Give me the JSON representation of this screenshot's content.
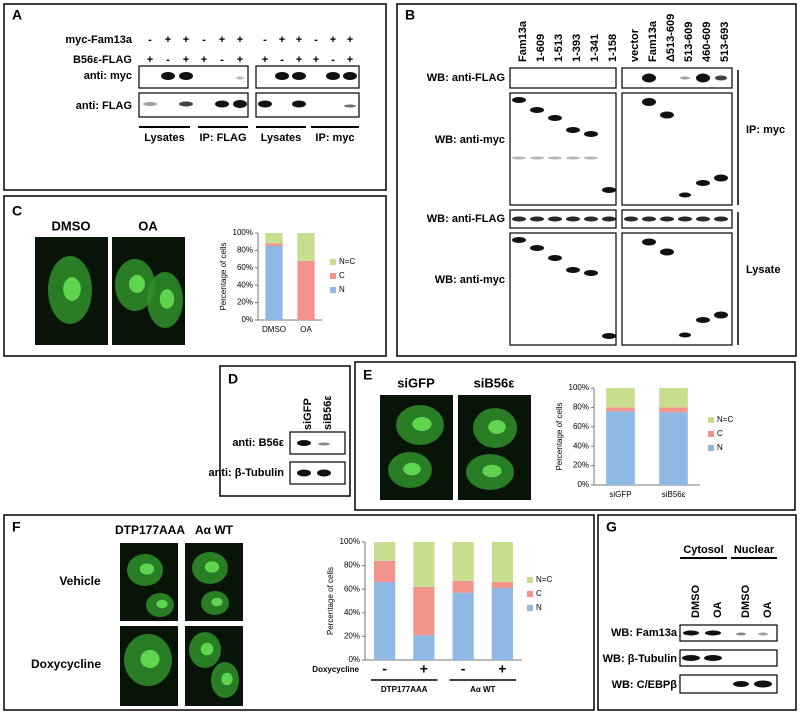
{
  "panels": {
    "a": {
      "label": "A",
      "rows": [
        {
          "label": "myc-Fam13a",
          "signs": [
            "-",
            "+",
            "+",
            "-",
            "+",
            "+",
            "-",
            "+",
            "+",
            "-",
            "+",
            "+"
          ]
        },
        {
          "label": "B56ε-FLAG",
          "signs": [
            "+",
            "-",
            "+",
            "+",
            "-",
            "+",
            "+",
            "-",
            "+",
            "+",
            "-",
            "+"
          ]
        }
      ],
      "blots": [
        "anti: myc",
        "anti: FLAG"
      ],
      "groups": [
        "Lysates",
        "IP: FLAG",
        "Lysates",
        "IP: myc"
      ]
    },
    "b": {
      "label": "B",
      "lanes_left": [
        "Fam13a",
        "1-609",
        "1-513",
        "1-393",
        "1-341",
        "1-158"
      ],
      "lanes_right": [
        "vector",
        "Fam13a",
        "Δ513-609",
        "513-609",
        "460-609",
        "513-693"
      ],
      "blots": [
        "WB: anti-FLAG",
        "WB: anti-myc",
        "WB: anti-FLAG",
        "WB: anti-myc"
      ],
      "sections": [
        "IP: myc",
        "Lysate"
      ]
    },
    "c": {
      "label": "C",
      "images": [
        "DMSO",
        "OA"
      ]
    },
    "d": {
      "label": "D",
      "lanes": [
        "siGFP",
        "siB56ε"
      ],
      "blots": [
        "anti: B56ε",
        "anti: β-Tubulin"
      ]
    },
    "e": {
      "label": "E",
      "images": [
        "siGFP",
        "siB56ε"
      ]
    },
    "f": {
      "label": "F",
      "columns": [
        "DTP177AAA",
        "Aα WT"
      ],
      "rows": [
        "Vehicle",
        "Doxycycline"
      ]
    },
    "g": {
      "label": "G",
      "fractions": [
        "Cytosol",
        "Nuclear"
      ],
      "lanes": [
        "DMSO",
        "OA",
        "DMSO",
        "OA"
      ],
      "blots": [
        "WB: Fam13a",
        "WB: β-Tubulin",
        "WB: C/EBPβ"
      ]
    }
  },
  "chart_data": [
    {
      "type": "bar",
      "stacked": true,
      "y_label": "Percentage of cells",
      "categories": [
        "DMSO",
        "OA"
      ],
      "series": [
        {
          "name": "N",
          "color": "#8fb8e4",
          "values": [
            85,
            0
          ]
        },
        {
          "name": "C",
          "color": "#f2948c",
          "values": [
            3,
            68
          ]
        },
        {
          "name": "N=C",
          "color": "#c6de8e",
          "values": [
            12,
            32
          ]
        }
      ],
      "ylim": [
        0,
        100
      ],
      "yticks": [
        {
          "value": 0,
          "label": "0%"
        },
        {
          "value": 20,
          "label": "20%"
        },
        {
          "value": 40,
          "label": "40%"
        },
        {
          "value": 60,
          "label": "60%"
        },
        {
          "value": 80,
          "label": "80%"
        },
        {
          "value": 100,
          "label": "100%"
        }
      ],
      "legend": "right"
    },
    {
      "type": "bar",
      "stacked": true,
      "y_label": "Percentage of cells",
      "categories": [
        "siGFP",
        "siB56ε"
      ],
      "series": [
        {
          "name": "N",
          "color": "#8fb8e4",
          "values": [
            76,
            75
          ]
        },
        {
          "name": "C",
          "color": "#f2948c",
          "values": [
            4,
            5
          ]
        },
        {
          "name": "N=C",
          "color": "#c6de8e",
          "values": [
            20,
            20
          ]
        }
      ],
      "ylim": [
        0,
        100
      ],
      "yticks": [
        {
          "value": 0,
          "label": "0%"
        },
        {
          "value": 20,
          "label": "20%"
        },
        {
          "value": 40,
          "label": "40%"
        },
        {
          "value": 60,
          "label": "60%"
        },
        {
          "value": 80,
          "label": "80%"
        },
        {
          "value": 100,
          "label": "100%"
        }
      ],
      "legend": "right"
    },
    {
      "type": "bar",
      "stacked": true,
      "y_label": "Percentage of cells",
      "x_label": "Doxycycline",
      "categories": [
        "-",
        "+",
        "-",
        "+"
      ],
      "groups": [
        "DTP177AAA",
        "Aα WT"
      ],
      "series": [
        {
          "name": "N",
          "color": "#8fb8e4",
          "values": [
            66,
            21,
            57,
            61
          ]
        },
        {
          "name": "C",
          "color": "#f2948c",
          "values": [
            18,
            41,
            10,
            5
          ]
        },
        {
          "name": "N=C",
          "color": "#c6de8e",
          "values": [
            16,
            38,
            33,
            34
          ]
        }
      ],
      "ylim": [
        0,
        100
      ],
      "yticks": [
        {
          "value": 0,
          "label": "0%"
        },
        {
          "value": 20,
          "label": "20%"
        },
        {
          "value": 40,
          "label": "40%"
        },
        {
          "value": 60,
          "label": "60%"
        },
        {
          "value": 80,
          "label": "80%"
        },
        {
          "value": 100,
          "label": "100%"
        }
      ],
      "legend": "right"
    }
  ]
}
